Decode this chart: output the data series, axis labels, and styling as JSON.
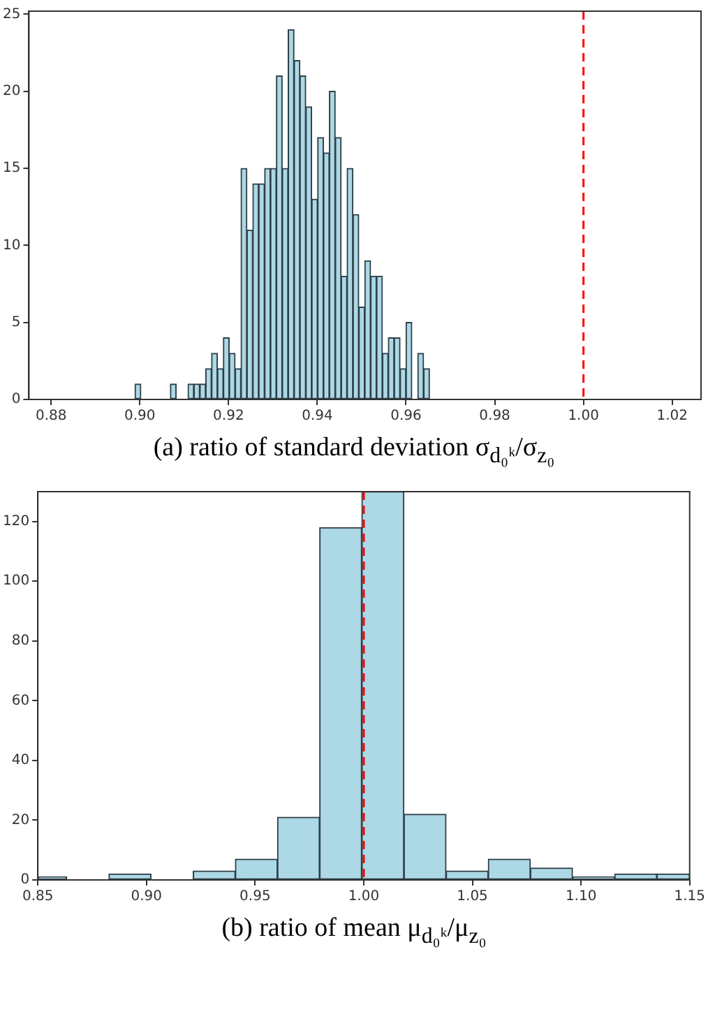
{
  "chart_data": [
    {
      "type": "histogram",
      "xlabel": "(a) ratio of standard deviation σ$_{d₀ᵏ}$/σ$_{z₀}$",
      "bins": [
        0.8989,
        0.90023,
        0.90156,
        0.90288,
        0.90421,
        0.90554,
        0.90687,
        0.9082,
        0.90952,
        0.91085,
        0.91218,
        0.91351,
        0.91484,
        0.91616,
        0.91749,
        0.91882,
        0.92015,
        0.92148,
        0.9228,
        0.92413,
        0.92546,
        0.92679,
        0.92812,
        0.92944,
        0.93077,
        0.9321,
        0.93343,
        0.93476,
        0.93608,
        0.93741,
        0.93874,
        0.94007,
        0.9414,
        0.94272,
        0.94405,
        0.94538,
        0.94671,
        0.94804,
        0.94936,
        0.95069,
        0.95202,
        0.95335,
        0.95468,
        0.956,
        0.95733,
        0.95866,
        0.95999,
        0.96132,
        0.96264,
        0.96397,
        0.9653
      ],
      "values": [
        1,
        0,
        0,
        0,
        0,
        0,
        1,
        0,
        0,
        1,
        1,
        1,
        2,
        3,
        2,
        4,
        3,
        2,
        15,
        11,
        14,
        14,
        15,
        15,
        21,
        15,
        24,
        22,
        21,
        19,
        13,
        17,
        16,
        20,
        17,
        8,
        15,
        12,
        6,
        9,
        8,
        8,
        3,
        4,
        4,
        2,
        5,
        0,
        3,
        2
      ],
      "color": "#add8e6",
      "xlim": [
        0.875,
        1.0265
      ],
      "xticks": [
        0.88,
        {
          "value": 0.9,
          "label": "0.90"
        },
        0.92,
        0.94,
        0.96,
        0.98,
        {
          "value": 1,
          "label": "1.00"
        },
        1.02
      ],
      "ylim": [
        0,
        25.2
      ],
      "yticks": [
        0,
        5,
        10,
        15,
        20,
        25
      ],
      "ref_lines": [
        {
          "axis": "x",
          "value": 1,
          "color": "#ff0000",
          "line_style": "dashed"
        }
      ],
      "grid": false,
      "legend": false
    },
    {
      "type": "histogram",
      "xlabel": "(b) ratio of mean μ$_{d₀ᵏ}$/μ$_{z₀}$",
      "bins": [
        0.85,
        0.8633,
        0.8827,
        0.9021,
        0.9215,
        0.9409,
        0.9603,
        0.9797,
        0.9991,
        1.0185,
        1.0379,
        1.0573,
        1.0767,
        1.0961,
        1.1155,
        1.1349,
        1.15
      ],
      "values": [
        1,
        0,
        2,
        0,
        3,
        7,
        21,
        118,
        130,
        22,
        3,
        7,
        4,
        1,
        2,
        2
      ],
      "color": "#add8e6",
      "xlim": [
        0.85,
        1.15
      ],
      "xticks": [
        0.85,
        {
          "value": 0.9,
          "label": "0.90"
        },
        0.95,
        {
          "value": 1,
          "label": "1.00"
        },
        1.05,
        {
          "value": 1.1,
          "label": "1.10"
        },
        1.15
      ],
      "ylim": [
        0,
        130
      ],
      "yticks": [
        0,
        20,
        40,
        60,
        80,
        100,
        120
      ],
      "ref_lines": [
        {
          "axis": "x",
          "value": 1,
          "color": "#ff0000",
          "line_style": "dashed"
        }
      ],
      "grid": false,
      "legend": false
    }
  ]
}
